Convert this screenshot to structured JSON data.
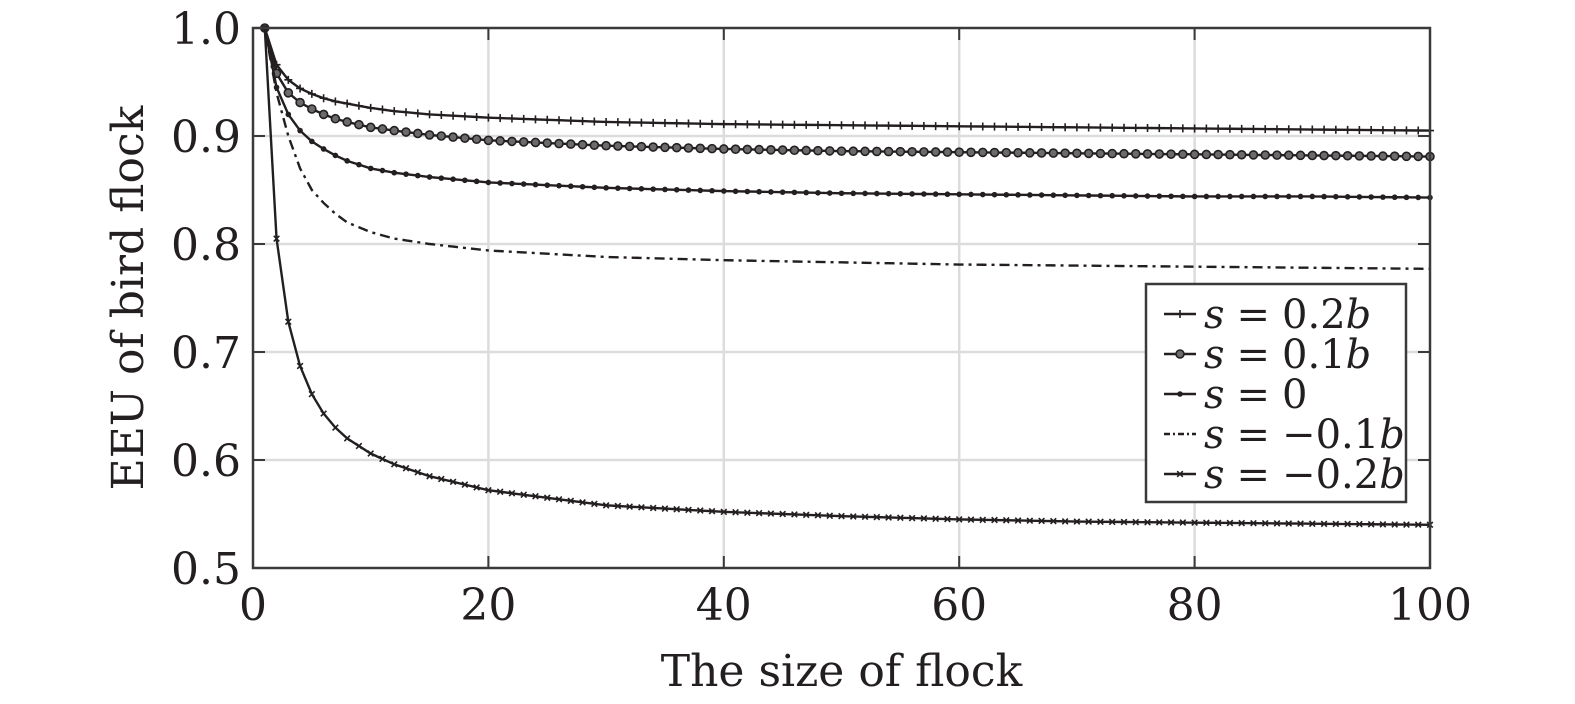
{
  "chart_data": {
    "type": "line",
    "title": "",
    "xlabel": "The size of flock",
    "ylabel": "EEU of bird flock",
    "xlim": [
      0,
      100
    ],
    "ylim": [
      0.5,
      1.0
    ],
    "xticks": [
      0,
      20,
      40,
      60,
      80,
      100
    ],
    "xtick_labels": [
      "0",
      "20",
      "40",
      "60",
      "80",
      "100"
    ],
    "yticks": [
      0.5,
      0.6,
      0.7,
      0.8,
      0.9,
      1.0
    ],
    "ytick_labels": [
      "0.5",
      "0.6",
      "0.7",
      "0.8",
      "0.9",
      "1.0"
    ],
    "grid": true,
    "legend_position": "right",
    "x": [
      1,
      2,
      3,
      4,
      5,
      6,
      7,
      8,
      10,
      12,
      15,
      20,
      30,
      40,
      50,
      60,
      70,
      80,
      90,
      100
    ],
    "series": [
      {
        "name": "s = 0.2b",
        "marker": "plus",
        "dash": "solid",
        "values": [
          1.0,
          0.966,
          0.952,
          0.944,
          0.939,
          0.935,
          0.932,
          0.93,
          0.926,
          0.923,
          0.92,
          0.917,
          0.913,
          0.911,
          0.91,
          0.909,
          0.908,
          0.907,
          0.906,
          0.905
        ]
      },
      {
        "name": "s = 0.1b",
        "marker": "circle",
        "dash": "solid",
        "values": [
          1.0,
          0.958,
          0.94,
          0.931,
          0.925,
          0.92,
          0.916,
          0.913,
          0.908,
          0.905,
          0.901,
          0.896,
          0.891,
          0.888,
          0.886,
          0.885,
          0.884,
          0.883,
          0.882,
          0.881
        ]
      },
      {
        "name": "s = 0",
        "marker": "dot",
        "dash": "solid",
        "values": [
          1.0,
          0.945,
          0.92,
          0.905,
          0.895,
          0.888,
          0.882,
          0.877,
          0.87,
          0.866,
          0.862,
          0.857,
          0.852,
          0.849,
          0.847,
          0.846,
          0.845,
          0.844,
          0.844,
          0.843
        ]
      },
      {
        "name": "s = −0.1b",
        "marker": "none",
        "dash": "dashdot",
        "values": [
          1.0,
          0.94,
          0.9,
          0.87,
          0.85,
          0.838,
          0.828,
          0.82,
          0.811,
          0.805,
          0.8,
          0.794,
          0.788,
          0.785,
          0.783,
          0.781,
          0.78,
          0.779,
          0.778,
          0.777
        ]
      },
      {
        "name": "s = −0.2b",
        "marker": "x",
        "dash": "solid",
        "values": [
          1.0,
          0.805,
          0.728,
          0.687,
          0.661,
          0.643,
          0.63,
          0.62,
          0.606,
          0.596,
          0.585,
          0.572,
          0.558,
          0.552,
          0.548,
          0.545,
          0.543,
          0.542,
          0.541,
          0.54
        ]
      }
    ]
  },
  "legend": {
    "entries": [
      {
        "sym": "s",
        "op": "=",
        "val": "0.2",
        "var": "b"
      },
      {
        "sym": "s",
        "op": "=",
        "val": "0.1",
        "var": "b"
      },
      {
        "sym": "s",
        "op": "=",
        "val": "0",
        "var": ""
      },
      {
        "sym": "s",
        "op": "=",
        "val": "−0.1",
        "var": "b"
      },
      {
        "sym": "s",
        "op": "=",
        "val": "−0.2",
        "var": "b"
      }
    ]
  },
  "colors": {
    "line": "#231f20",
    "grid": "#dcdcdc",
    "frame": "#3a3a3a"
  }
}
